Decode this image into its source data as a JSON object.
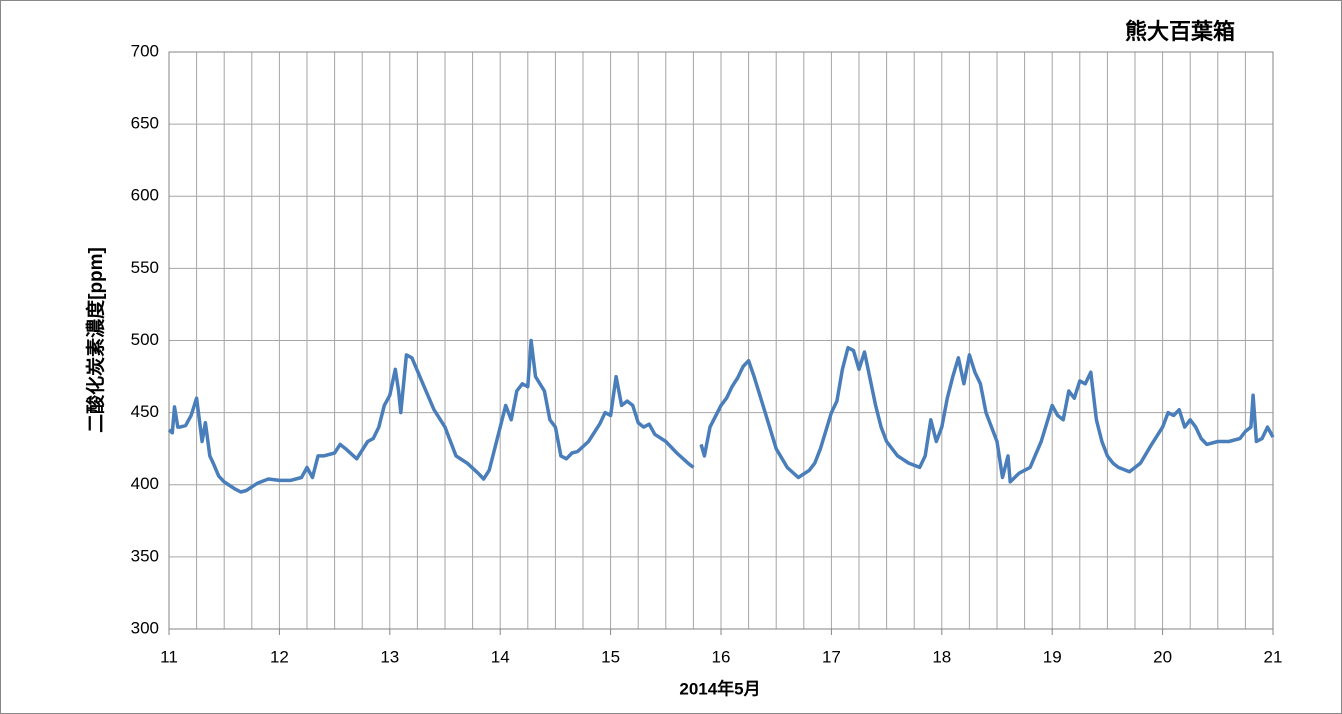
{
  "chart_data": {
    "type": "line",
    "title": "熊大百葉箱",
    "xlabel": "2014年5月",
    "ylabel": "二酸化炭素濃度[ppm]",
    "color": "#4a7ebb",
    "x": [
      11.0,
      11.03,
      11.05,
      11.08,
      11.1,
      11.15,
      11.2,
      11.25,
      11.3,
      11.33,
      11.37,
      11.4,
      11.45,
      11.5,
      11.6,
      11.65,
      11.7,
      11.8,
      11.9,
      12.0,
      12.1,
      12.2,
      12.25,
      12.3,
      12.35,
      12.4,
      12.5,
      12.55,
      12.6,
      12.7,
      12.8,
      12.85,
      12.9,
      12.95,
      13.0,
      13.05,
      13.08,
      13.1,
      13.15,
      13.2,
      13.3,
      13.4,
      13.5,
      13.55,
      13.6,
      13.7,
      13.8,
      13.85,
      13.9,
      14.0,
      14.05,
      14.1,
      14.15,
      14.2,
      14.25,
      14.28,
      14.32,
      14.4,
      14.45,
      14.5,
      14.55,
      14.6,
      14.65,
      14.7,
      14.8,
      14.9,
      14.95,
      15.0,
      15.05,
      15.1,
      15.15,
      15.2,
      15.25,
      15.3,
      15.35,
      15.4,
      15.5,
      15.6,
      15.7,
      15.75,
      15.79,
      15.82,
      15.85,
      15.9,
      16.0,
      16.05,
      16.1,
      16.15,
      16.2,
      16.25,
      16.3,
      16.4,
      16.5,
      16.6,
      16.7,
      16.8,
      16.85,
      16.9,
      17.0,
      17.05,
      17.1,
      17.15,
      17.2,
      17.25,
      17.3,
      17.4,
      17.45,
      17.5,
      17.6,
      17.7,
      17.8,
      17.85,
      17.9,
      17.95,
      18.0,
      18.05,
      18.1,
      18.15,
      18.2,
      18.25,
      18.3,
      18.35,
      18.4,
      18.5,
      18.55,
      18.6,
      18.62,
      18.7,
      18.8,
      18.9,
      19.0,
      19.05,
      19.1,
      19.15,
      19.2,
      19.25,
      19.3,
      19.35,
      19.4,
      19.45,
      19.5,
      19.55,
      19.6,
      19.7,
      19.8,
      19.9,
      20.0,
      20.05,
      20.1,
      20.15,
      20.2,
      20.25,
      20.3,
      20.35,
      20.4,
      20.5,
      20.6,
      20.7,
      20.75,
      20.8,
      20.82,
      20.85,
      20.9,
      20.95,
      21.0
    ],
    "values": [
      438,
      436,
      454,
      440,
      440,
      441,
      448,
      460,
      430,
      443,
      420,
      415,
      406,
      402,
      397,
      395,
      396,
      401,
      404,
      403,
      403,
      405,
      412,
      405,
      420,
      420,
      422,
      428,
      425,
      418,
      430,
      432,
      440,
      455,
      462,
      480,
      465,
      450,
      490,
      488,
      470,
      452,
      440,
      430,
      420,
      415,
      408,
      404,
      410,
      440,
      455,
      445,
      465,
      470,
      468,
      500,
      475,
      465,
      445,
      440,
      420,
      418,
      422,
      423,
      430,
      442,
      450,
      448,
      475,
      455,
      458,
      455,
      443,
      440,
      442,
      435,
      430,
      422,
      415,
      412,
      null,
      428,
      420,
      440,
      455,
      460,
      468,
      474,
      482,
      486,
      475,
      450,
      425,
      412,
      405,
      410,
      415,
      425,
      450,
      458,
      480,
      495,
      493,
      480,
      492,
      455,
      440,
      430,
      420,
      415,
      412,
      420,
      445,
      430,
      440,
      460,
      475,
      488,
      470,
      490,
      478,
      470,
      450,
      430,
      405,
      420,
      402,
      408,
      412,
      430,
      455,
      448,
      445,
      465,
      460,
      472,
      470,
      478,
      445,
      430,
      420,
      415,
      412,
      409,
      415,
      428,
      440,
      450,
      448,
      452,
      440,
      445,
      440,
      432,
      428,
      430,
      430,
      432,
      437,
      440,
      462,
      430,
      432,
      440,
      433
    ],
    "xlim": [
      11,
      21
    ],
    "xticks": [
      11,
      12,
      13,
      14,
      15,
      16,
      17,
      18,
      19,
      20,
      21
    ],
    "xminorticks": [
      11.25,
      11.5,
      11.75,
      12.25,
      12.5,
      12.75,
      13.25,
      13.5,
      13.75,
      14.25,
      14.5,
      14.75,
      15.25,
      15.5,
      15.75,
      16.25,
      16.5,
      16.75,
      17.25,
      17.5,
      17.75,
      18.25,
      18.5,
      18.75,
      19.25,
      19.5,
      19.75,
      20.25,
      20.5,
      20.75
    ],
    "ylim": [
      300,
      700
    ],
    "yticks": [
      300,
      350,
      400,
      450,
      500,
      550,
      600,
      650,
      700
    ],
    "grid": true
  }
}
